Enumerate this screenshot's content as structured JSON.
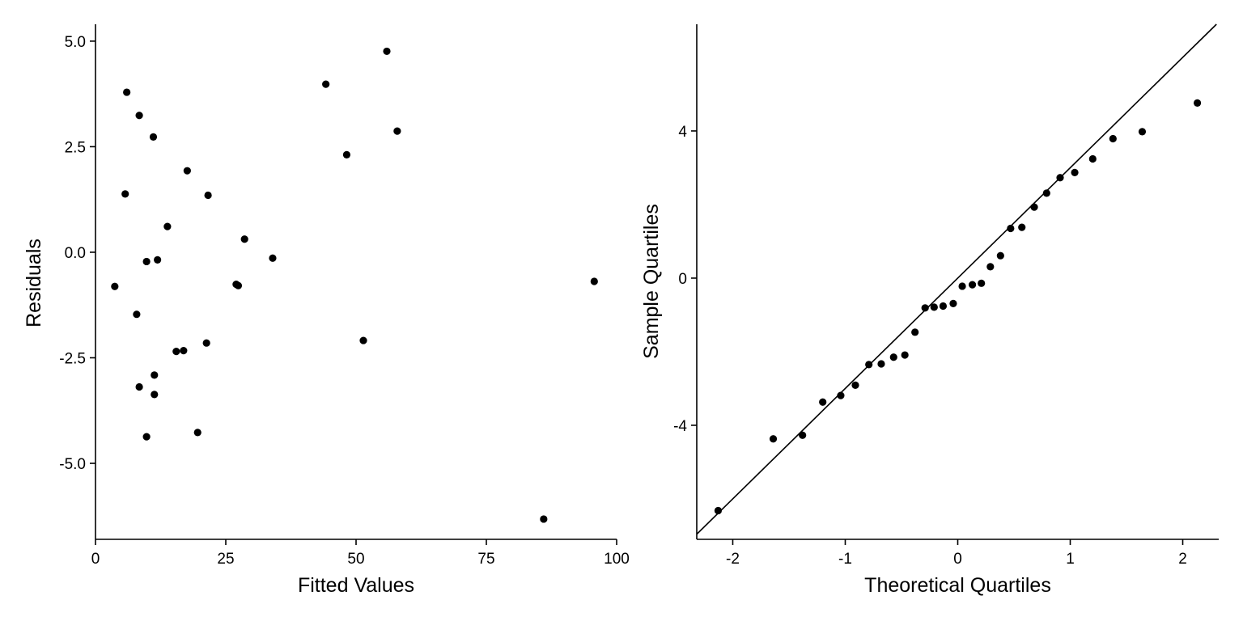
{
  "chart_data": [
    {
      "type": "scatter",
      "xlabel": "Fitted Values",
      "ylabel": "Residuals",
      "xlim": [
        0,
        100
      ],
      "ylim": [
        -6.8,
        5.4
      ],
      "x_ticks": [
        0,
        25,
        50,
        75,
        100
      ],
      "x_tick_labels": [
        "0",
        "25",
        "50",
        "75",
        "100"
      ],
      "y_ticks": [
        5.0,
        2.5,
        0.0,
        -2.5,
        -5.0
      ],
      "y_tick_labels": [
        "5.0",
        "2.5",
        "0.0",
        "-2.5",
        "-5.0"
      ],
      "grid": false,
      "point_color": "#000000",
      "points": [
        {
          "x": 3.7,
          "y": -0.81
        },
        {
          "x": 5.7,
          "y": 1.38
        },
        {
          "x": 6.0,
          "y": 3.79
        },
        {
          "x": 7.9,
          "y": -1.47
        },
        {
          "x": 8.4,
          "y": 3.24
        },
        {
          "x": 8.4,
          "y": -3.19
        },
        {
          "x": 9.8,
          "y": -0.22
        },
        {
          "x": 9.8,
          "y": -4.37
        },
        {
          "x": 11.1,
          "y": 2.73
        },
        {
          "x": 11.3,
          "y": -2.91
        },
        {
          "x": 11.3,
          "y": -3.37
        },
        {
          "x": 11.9,
          "y": -0.18
        },
        {
          "x": 13.8,
          "y": 0.61
        },
        {
          "x": 15.5,
          "y": -2.35
        },
        {
          "x": 16.9,
          "y": -2.33
        },
        {
          "x": 17.6,
          "y": 1.93
        },
        {
          "x": 19.6,
          "y": -4.27
        },
        {
          "x": 21.3,
          "y": -2.15
        },
        {
          "x": 21.6,
          "y": 1.35
        },
        {
          "x": 27.0,
          "y": -0.76
        },
        {
          "x": 27.4,
          "y": -0.79
        },
        {
          "x": 28.6,
          "y": 0.31
        },
        {
          "x": 34.0,
          "y": -0.14
        },
        {
          "x": 44.2,
          "y": 3.98
        },
        {
          "x": 48.2,
          "y": 2.31
        },
        {
          "x": 51.4,
          "y": -2.09
        },
        {
          "x": 55.9,
          "y": 4.76
        },
        {
          "x": 57.9,
          "y": 2.87
        },
        {
          "x": 86.0,
          "y": -6.32
        },
        {
          "x": 95.7,
          "y": -0.69
        }
      ]
    },
    {
      "type": "scatter",
      "xlabel": "Theoretical Quartiles",
      "ylabel": "Sample Quartiles",
      "xlim": [
        -2.32,
        2.32
      ],
      "ylim": [
        -7.1,
        6.9
      ],
      "x_ticks": [
        -2,
        -1,
        0,
        1,
        2
      ],
      "x_tick_labels": [
        "-2",
        "-1",
        "0",
        "1",
        "2"
      ],
      "y_ticks": [
        4,
        0,
        -4
      ],
      "y_tick_labels": [
        "4",
        "0",
        "-4"
      ],
      "grid": false,
      "point_color": "#000000",
      "reference_line": {
        "slope": 3.0,
        "intercept": 0.0
      },
      "points": [
        {
          "x": -2.13,
          "y": -6.32
        },
        {
          "x": -1.64,
          "y": -4.37
        },
        {
          "x": -1.38,
          "y": -4.27
        },
        {
          "x": -1.2,
          "y": -3.37
        },
        {
          "x": -1.04,
          "y": -3.19
        },
        {
          "x": -0.91,
          "y": -2.91
        },
        {
          "x": -0.79,
          "y": -2.35
        },
        {
          "x": -0.68,
          "y": -2.33
        },
        {
          "x": -0.57,
          "y": -2.15
        },
        {
          "x": -0.47,
          "y": -2.09
        },
        {
          "x": -0.38,
          "y": -1.47
        },
        {
          "x": -0.29,
          "y": -0.81
        },
        {
          "x": -0.21,
          "y": -0.79
        },
        {
          "x": -0.13,
          "y": -0.76
        },
        {
          "x": -0.04,
          "y": -0.69
        },
        {
          "x": 0.04,
          "y": -0.22
        },
        {
          "x": 0.13,
          "y": -0.18
        },
        {
          "x": 0.21,
          "y": -0.14
        },
        {
          "x": 0.29,
          "y": 0.31
        },
        {
          "x": 0.38,
          "y": 0.61
        },
        {
          "x": 0.47,
          "y": 1.35
        },
        {
          "x": 0.57,
          "y": 1.38
        },
        {
          "x": 0.68,
          "y": 1.93
        },
        {
          "x": 0.79,
          "y": 2.31
        },
        {
          "x": 0.91,
          "y": 2.73
        },
        {
          "x": 1.04,
          "y": 2.87
        },
        {
          "x": 1.2,
          "y": 3.24
        },
        {
          "x": 1.38,
          "y": 3.79
        },
        {
          "x": 1.64,
          "y": 3.98
        },
        {
          "x": 2.13,
          "y": 4.76
        }
      ]
    }
  ]
}
